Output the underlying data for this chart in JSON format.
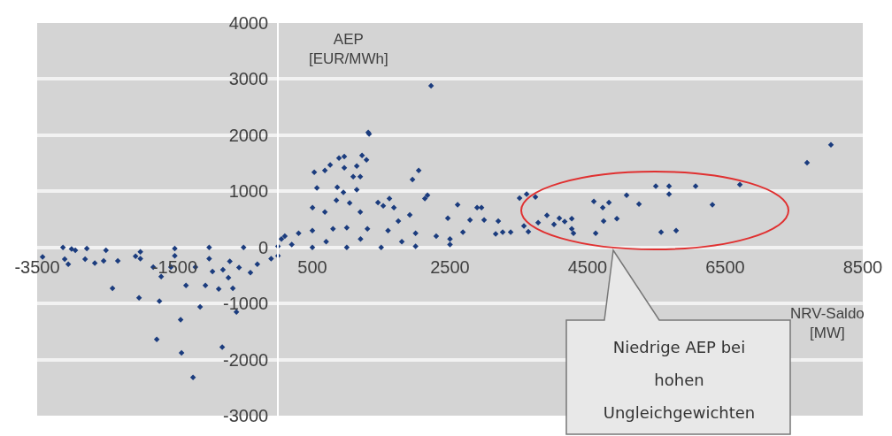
{
  "chart_data": {
    "type": "scatter",
    "xlabel": "NRV-Saldo [MW]",
    "ylabel": "AEP [EUR/MWh]",
    "annotations": [
      "Niedrige AEP bei hohen Ungleichgewichten"
    ],
    "xlim": [
      -3500,
      8500
    ],
    "xticks": [
      -3500,
      -1500,
      500,
      2500,
      4500,
      6500,
      8500
    ],
    "ylim": [
      -3000,
      4000
    ],
    "yticks": [
      -3000,
      -2000,
      -1000,
      0,
      1000,
      2000,
      3000,
      4000
    ],
    "grid": "y",
    "marker": "diamond",
    "series": [
      {
        "color": "#1b3c7e",
        "x": [
          2225,
          1312,
          527,
          682,
          759,
          887,
          964,
          964,
          1145,
          1222,
          1286,
          1093,
          1196,
          1325,
          2045,
          1955,
          2135,
          862,
          951,
          1145,
          566,
          502,
          849,
          1042,
          1453,
          1620,
          1530,
          1685,
          1196,
          1916,
          682,
          1749,
          -3421,
          -3125,
          -3048,
          -3100,
          -2945,
          -2778,
          -2662,
          -2803,
          -2405,
          -2534,
          -2328,
          -2019,
          -1723,
          -1762,
          -1415,
          -1402,
          -1235,
          -810,
          -1132,
          -604,
          -862,
          -656,
          -1055,
          -1337,
          -1698,
          -1813,
          -1556,
          -720,
          -566,
          -952,
          -2070,
          8037,
          7690,
          6713,
          6070,
          5684,
          5491,
          5684,
          6314,
          5247,
          5067,
          4810,
          4591,
          4720,
          4925,
          4733,
          4617,
          5568,
          5787,
          4295,
          4270,
          4270,
          4167,
          4089,
          4012,
          3909,
          3781,
          3742,
          3614,
          3511,
          3639,
          3575,
          3382,
          3266,
          3164,
          2611,
          2894,
          2958,
          2469,
          2791,
          2996,
          3202,
          2688,
          2173,
          -3000,
          -2500,
          -2000,
          -1500,
          -1000,
          -700,
          -300,
          -100,
          -1500,
          -1000,
          -500,
          0,
          0,
          50,
          100,
          300,
          500,
          800,
          1000,
          1300,
          1600,
          2000,
          2300,
          2500,
          500,
          1000,
          1500,
          2000,
          2500,
          200,
          700,
          1200,
          1800,
          -2000,
          -1200,
          -800,
          -400
        ],
        "values": [
          2880,
          2050,
          1340,
          1370,
          1470,
          1590,
          1620,
          1420,
          1450,
          1640,
          1560,
          1260,
          1260,
          2020,
          1370,
          1210,
          870,
          1070,
          980,
          1030,
          1060,
          710,
          840,
          790,
          800,
          870,
          740,
          710,
          630,
          580,
          630,
          470,
          -170,
          0,
          -300,
          -210,
          -50,
          -20,
          -280,
          -210,
          -730,
          -240,
          -240,
          -900,
          -960,
          -1640,
          -1290,
          -1880,
          -2320,
          -1780,
          -1060,
          -1150,
          -740,
          -730,
          -680,
          -680,
          -520,
          -350,
          -350,
          -540,
          -360,
          -430,
          -160,
          1830,
          1510,
          1120,
          1090,
          1090,
          1090,
          950,
          760,
          770,
          930,
          800,
          820,
          710,
          510,
          470,
          250,
          270,
          300,
          250,
          330,
          510,
          460,
          520,
          410,
          570,
          440,
          900,
          950,
          880,
          280,
          380,
          270,
          270,
          240,
          760,
          710,
          710,
          520,
          490,
          490,
          470,
          270,
          930,
          -30,
          -50,
          -80,
          -150,
          -200,
          -250,
          -300,
          -200,
          -20,
          0,
          0,
          20,
          -150,
          150,
          200,
          250,
          300,
          330,
          350,
          330,
          300,
          250,
          200,
          150,
          0,
          0,
          0,
          20,
          50,
          50,
          100,
          150,
          100,
          -200,
          -350,
          -400,
          -450
        ]
      }
    ]
  }
}
